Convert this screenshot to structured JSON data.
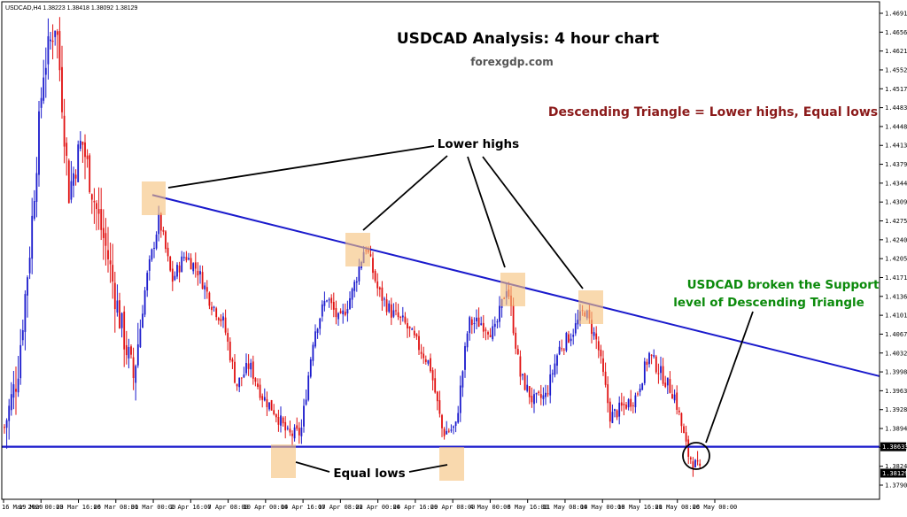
{
  "header": {
    "symbol_info": "USDCAD,H4  1.38223 1.38418 1.38092 1.38129",
    "title": "USDCAD Analysis: 4 hour chart",
    "subtitle": "forexgdp.com"
  },
  "annotations": {
    "definition": "Descending Triangle = Lower highs, Equal lows",
    "lower_highs": "Lower highs",
    "equal_lows": "Equal lows",
    "breakout_line1": "USDCAD broken the Support",
    "breakout_line2": "level of Descending Triangle"
  },
  "colors": {
    "bull": "#1a1acc",
    "bear": "#e01010",
    "trendline": "#1a1acc",
    "support": "#1a1acc",
    "highlight": "#f6c27d",
    "definition_text": "#8b1a1a",
    "breakout_text": "#0b8a0b"
  },
  "chart_data": {
    "type": "candlestick",
    "symbol": "USDCAD",
    "timeframe": "H4",
    "ohlc_last": {
      "open": 1.38223,
      "high": 1.38418,
      "low": 1.38092,
      "close": 1.38129
    },
    "y_ticks": [
      "1.46910",
      "1.46560",
      "1.46210",
      "1.45520",
      "1.45170",
      "1.44830",
      "1.44480",
      "1.44130",
      "1.43790",
      "1.43440",
      "1.43090",
      "1.42750",
      "1.42400",
      "1.42050",
      "1.41710",
      "1.41360",
      "1.41010",
      "1.40670",
      "1.40320",
      "1.39980",
      "1.39630",
      "1.39280",
      "1.38940",
      "1.38590",
      "1.38240",
      "1.37900"
    ],
    "ylim": [
      1.379,
      1.4691
    ],
    "x_ticks": [
      "16 Mar 2020",
      "19 Mar 00:00",
      "23 Mar 16:00",
      "26 Mar 08:00",
      "31 Mar 00:00",
      "2 Apr 16:00",
      "7 Apr 08:00",
      "10 Apr 00:00",
      "14 Apr 16:00",
      "17 Apr 08:00",
      "22 Apr 00:00",
      "24 Apr 16:00",
      "29 Apr 08:00",
      "4 May 00:00",
      "6 May 16:00",
      "11 May 08:00",
      "14 May 00:00",
      "18 May 16:00",
      "21 May 08:00",
      "26 May 00:00"
    ],
    "price_tags": {
      "support": "1.38633",
      "current": "1.38129"
    },
    "support_level": 1.38633,
    "descending_trendline": [
      {
        "x": "31 Mar 00:00",
        "y": 1.4344
      },
      {
        "x": "28 May",
        "y": 1.3998
      }
    ],
    "price_path": [
      [
        "16 Mar 2020",
        1.39
      ],
      [
        "17 Mar",
        1.4
      ],
      [
        "18 Mar",
        1.425
      ],
      [
        "19 Mar 00:00",
        1.458
      ],
      [
        "19 Mar 12:00",
        1.468
      ],
      [
        "20 Mar",
        1.435
      ],
      [
        "23 Mar 16:00",
        1.445
      ],
      [
        "24 Mar",
        1.433
      ],
      [
        "25 Mar",
        1.423
      ],
      [
        "26 Mar 08:00",
        1.41
      ],
      [
        "27 Mar",
        1.3995
      ],
      [
        "30 Mar",
        1.418
      ],
      [
        "31 Mar 00:00",
        1.43
      ],
      [
        "31 Mar 12:00",
        1.418
      ],
      [
        "1 Apr",
        1.423
      ],
      [
        "2 Apr 16:00",
        1.42
      ],
      [
        "3 Apr",
        1.414
      ],
      [
        "6 Apr",
        1.41
      ],
      [
        "7 Apr 08:00",
        1.398
      ],
      [
        "8 Apr",
        1.402
      ],
      [
        "9 Apr",
        1.396
      ],
      [
        "10 Apr 00:00",
        1.393
      ],
      [
        "13 Apr",
        1.3885
      ],
      [
        "14 Apr 16:00",
        1.389
      ],
      [
        "15 Apr",
        1.408
      ],
      [
        "16 Apr",
        1.415
      ],
      [
        "17 Apr 08:00",
        1.41
      ],
      [
        "20 Apr",
        1.416
      ],
      [
        "21 Apr",
        1.425
      ],
      [
        "22 Apr 00:00",
        1.416
      ],
      [
        "23 Apr",
        1.412
      ],
      [
        "24 Apr 16:00",
        1.41
      ],
      [
        "27 Apr",
        1.406
      ],
      [
        "28 Apr",
        1.402
      ],
      [
        "29 Apr 08:00",
        1.389
      ],
      [
        "30 Apr",
        1.39
      ],
      [
        "1 May",
        1.41
      ],
      [
        "4 May 00:00",
        1.41
      ],
      [
        "5 May",
        1.408
      ],
      [
        "6 May 16:00",
        1.4175
      ],
      [
        "7 May",
        1.4
      ],
      [
        "8 May",
        1.395
      ],
      [
        "11 May 08:00",
        1.396
      ],
      [
        "12 May",
        1.405
      ],
      [
        "13 May",
        1.408
      ],
      [
        "14 May 00:00",
        1.4125
      ],
      [
        "15 May",
        1.406
      ],
      [
        "18 May 16:00",
        1.392
      ],
      [
        "19 May",
        1.394
      ],
      [
        "20 May",
        1.396
      ],
      [
        "21 May 08:00",
        1.404
      ],
      [
        "22 May",
        1.4
      ],
      [
        "25 May",
        1.396
      ],
      [
        "26 May 00:00",
        1.385
      ],
      [
        "26 May 12:00",
        1.3813
      ]
    ]
  }
}
